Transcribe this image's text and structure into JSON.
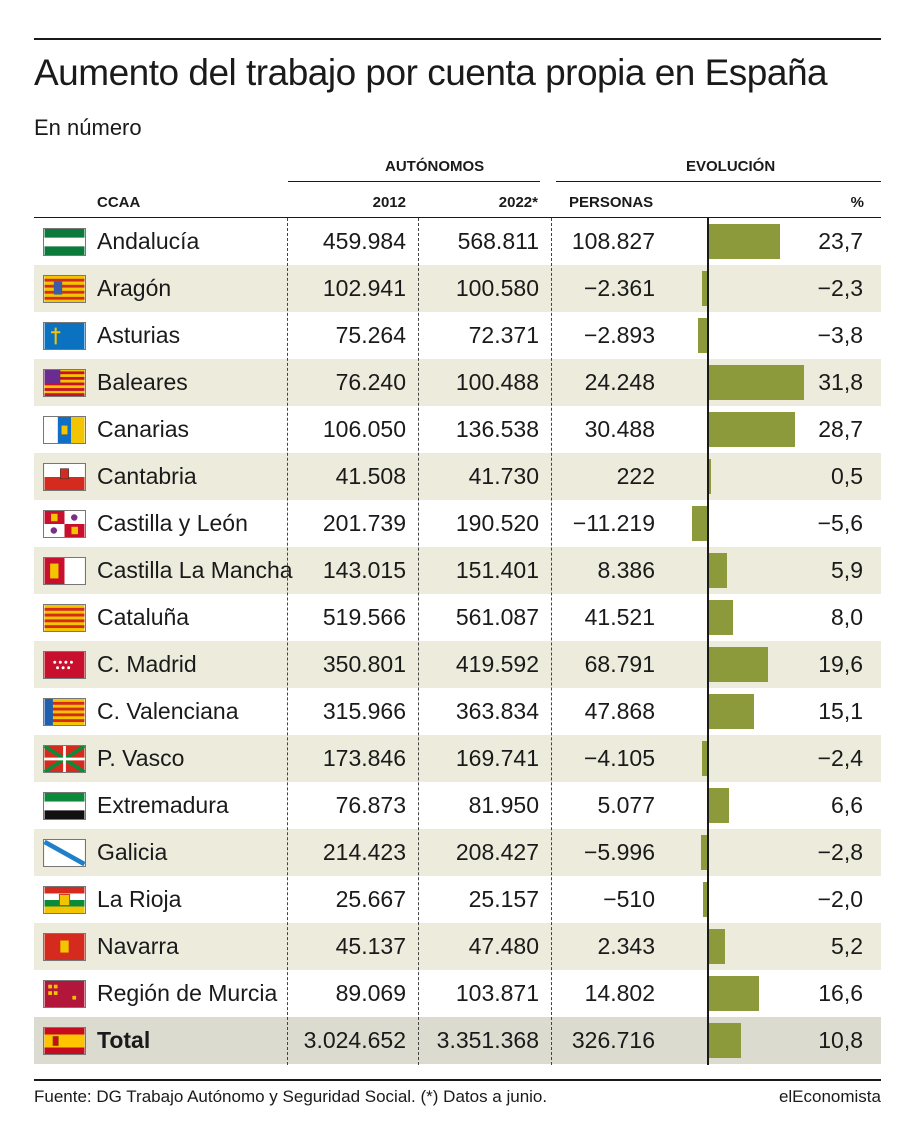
{
  "title": "Aumento del trabajo por cuenta propia en España",
  "subtitle": "En número",
  "headers": {
    "autonomos": "AUTÓNOMOS",
    "evolucion": "EVOLUCIÓN",
    "ccaa": "CCAA",
    "y2012": "2012",
    "y2022": "2022*",
    "personas": "PERSONAS",
    "pct": "%"
  },
  "footer": {
    "source": "Fuente: DG Trabajo Autónomo y Seguridad Social. (*) Datos a junio.",
    "brand": "elEconomista"
  },
  "colors": {
    "bar": "#8c9a3c",
    "shade": "#ecebdc",
    "total_shade": "#dcdbcf"
  },
  "chart_data": {
    "type": "table",
    "columns": [
      "CCAA",
      "2012",
      "2022*",
      "PERSONAS",
      "%"
    ],
    "rows": [
      {
        "name": "Andalucía",
        "flag": "andalucia-flag",
        "v2012": "459.984",
        "v2022": "568.811",
        "personas": "108.827",
        "pct_label": "23,7",
        "pct": 23.7
      },
      {
        "name": "Aragón",
        "flag": "aragon-flag",
        "v2012": "102.941",
        "v2022": "100.580",
        "personas": "−2.361",
        "pct_label": "−2,3",
        "pct": -2.3
      },
      {
        "name": "Asturias",
        "flag": "asturias-flag",
        "v2012": "75.264",
        "v2022": "72.371",
        "personas": "−2.893",
        "pct_label": "−3,8",
        "pct": -3.8
      },
      {
        "name": "Baleares",
        "flag": "baleares-flag",
        "v2012": "76.240",
        "v2022": "100.488",
        "personas": "24.248",
        "pct_label": "31,8",
        "pct": 31.8
      },
      {
        "name": "Canarias",
        "flag": "canarias-flag",
        "v2012": "106.050",
        "v2022": "136.538",
        "personas": "30.488",
        "pct_label": "28,7",
        "pct": 28.7
      },
      {
        "name": "Cantabria",
        "flag": "cantabria-flag",
        "v2012": "41.508",
        "v2022": "41.730",
        "personas": "222",
        "pct_label": "0,5",
        "pct": 0.5
      },
      {
        "name": "Castilla y León",
        "flag": "castilla-leon-flag",
        "v2012": "201.739",
        "v2022": "190.520",
        "personas": "−11.219",
        "pct_label": "−5,6",
        "pct": -5.6
      },
      {
        "name": "Castilla La Mancha",
        "flag": "castilla-la-mancha-flag",
        "v2012": "143.015",
        "v2022": "151.401",
        "personas": "8.386",
        "pct_label": "5,9",
        "pct": 5.9
      },
      {
        "name": "Cataluña",
        "flag": "cataluna-flag",
        "v2012": "519.566",
        "v2022": "561.087",
        "personas": "41.521",
        "pct_label": "8,0",
        "pct": 8.0
      },
      {
        "name": "C. Madrid",
        "flag": "madrid-flag",
        "v2012": "350.801",
        "v2022": "419.592",
        "personas": "68.791",
        "pct_label": "19,6",
        "pct": 19.6
      },
      {
        "name": "C. Valenciana",
        "flag": "valenciana-flag",
        "v2012": "315.966",
        "v2022": "363.834",
        "personas": "47.868",
        "pct_label": "15,1",
        "pct": 15.1
      },
      {
        "name": "P. Vasco",
        "flag": "pais-vasco-flag",
        "v2012": "173.846",
        "v2022": "169.741",
        "personas": "−4.105",
        "pct_label": "−2,4",
        "pct": -2.4
      },
      {
        "name": "Extremadura",
        "flag": "extremadura-flag",
        "v2012": "76.873",
        "v2022": "81.950",
        "personas": "5.077",
        "pct_label": "6,6",
        "pct": 6.6
      },
      {
        "name": "Galicia",
        "flag": "galicia-flag",
        "v2012": "214.423",
        "v2022": "208.427",
        "personas": "−5.996",
        "pct_label": "−2,8",
        "pct": -2.8
      },
      {
        "name": "La Rioja",
        "flag": "la-rioja-flag",
        "v2012": "25.667",
        "v2022": "25.157",
        "personas": "−510",
        "pct_label": "−2,0",
        "pct": -2.0
      },
      {
        "name": "Navarra",
        "flag": "navarra-flag",
        "v2012": "45.137",
        "v2022": "47.480",
        "personas": "2.343",
        "pct_label": "5,2",
        "pct": 5.2
      },
      {
        "name": "Región de Murcia",
        "flag": "murcia-flag",
        "v2012": "89.069",
        "v2022": "103.871",
        "personas": "14.802",
        "pct_label": "16,6",
        "pct": 16.6
      },
      {
        "name": "Total",
        "flag": "spain-flag",
        "v2012": "3.024.652",
        "v2022": "3.351.368",
        "personas": "326.716",
        "pct_label": "10,8",
        "pct": 10.8,
        "is_total": true
      }
    ]
  }
}
